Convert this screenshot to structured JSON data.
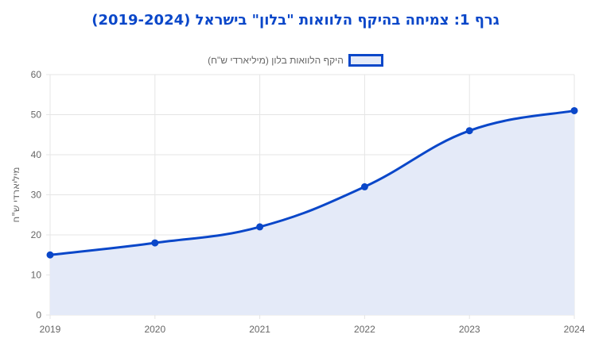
{
  "chart_data": {
    "type": "area",
    "title": "גרף 1: צמיחה בהיקף הלוואות \"בלון\" בישראל (2019-2024)",
    "xlabel": "",
    "ylabel": "מיליארדי ש\"ח",
    "categories": [
      "2019",
      "2020",
      "2021",
      "2022",
      "2023",
      "2024"
    ],
    "series": [
      {
        "name": "היקף הלוואות בלון (מיליארדי ש\"ח)",
        "values": [
          15,
          18,
          22,
          32,
          46,
          51
        ],
        "color": "#0a47c9",
        "fill": "#e4eaf8"
      }
    ],
    "ylim": [
      0,
      60
    ],
    "yticks": [
      0,
      10,
      20,
      30,
      40,
      50,
      60
    ],
    "grid": true,
    "legend_position": "top-center",
    "title_color": "#0a47c9"
  }
}
